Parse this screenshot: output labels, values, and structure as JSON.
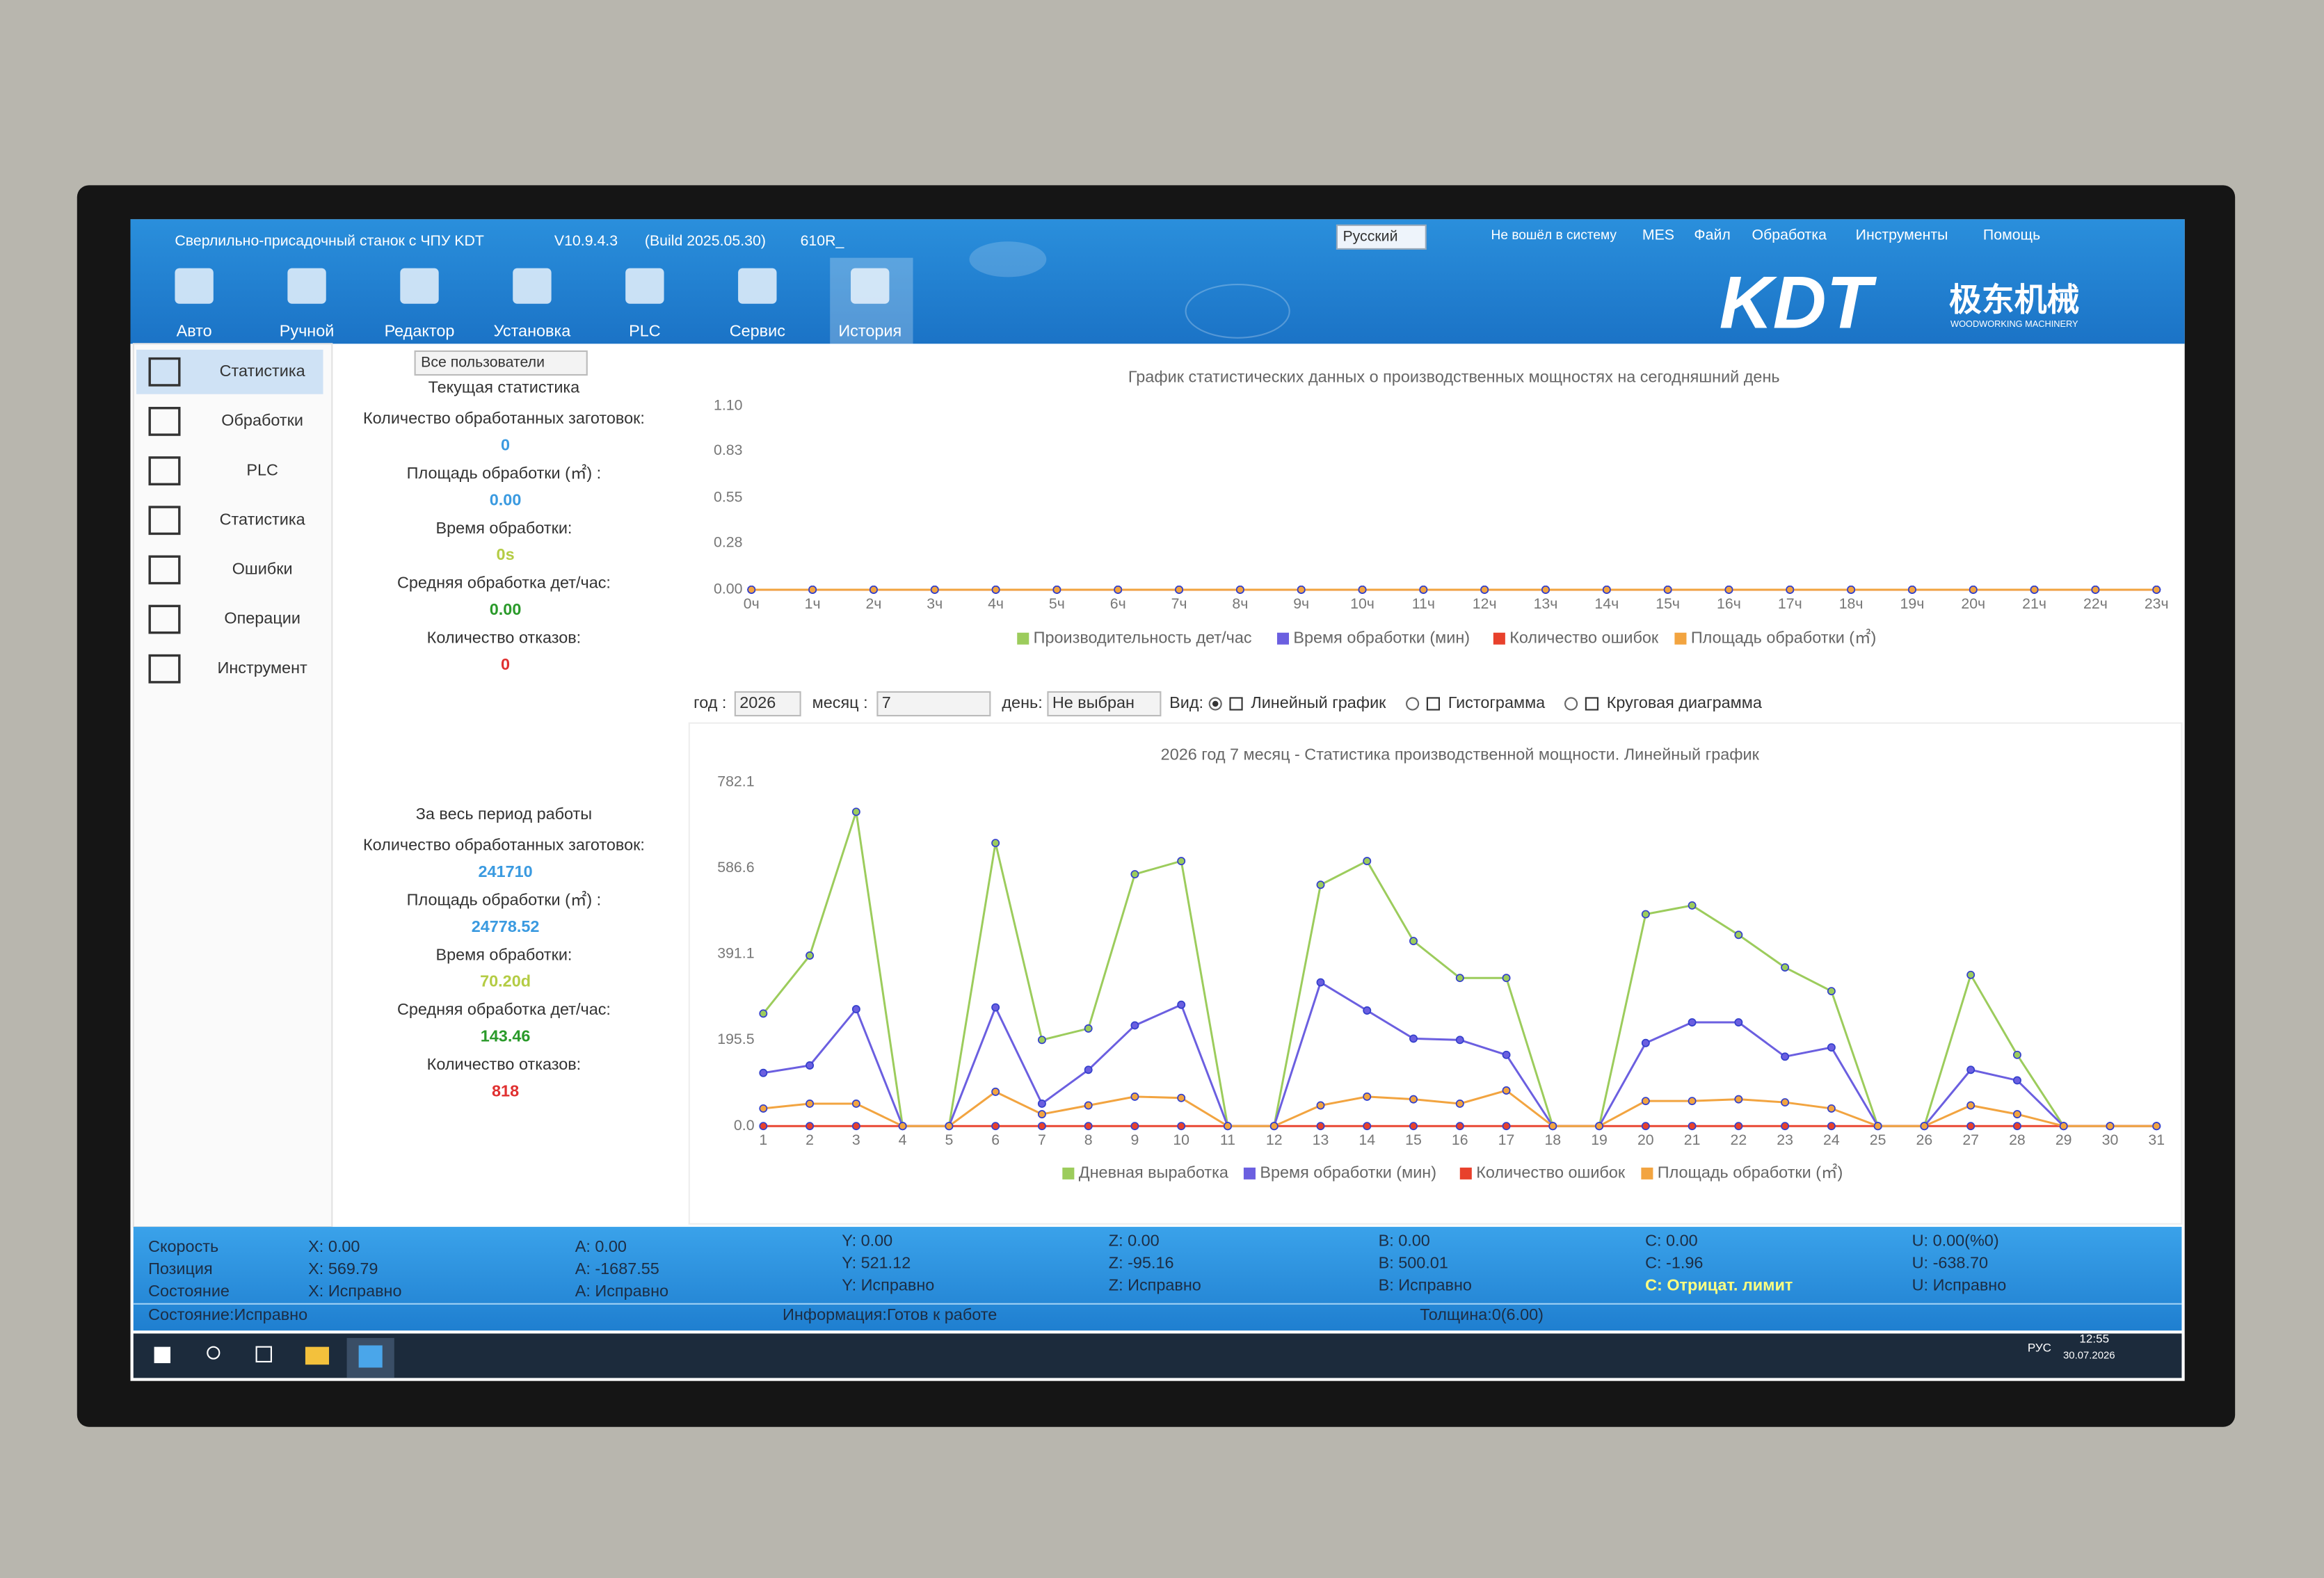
{
  "window": {
    "title": "Сверлильно-присадочный станок с ЧПУ KDT",
    "version": "V10.9.4.3",
    "build": "(Build 2025.05.30)",
    "model": "610R_",
    "language": "Русский",
    "login": "Не вошёл в систему",
    "menu": [
      "MES",
      "Файл",
      "Обработка",
      "Инструменты",
      "Помощь"
    ],
    "logo": "KDT",
    "logo_cn": "极东机械",
    "logo_sub": "WOODWORKING MACHINERY"
  },
  "toolbar": [
    "Авто",
    "Ручной",
    "Редактор",
    "Установка",
    "PLC",
    "Сервис",
    "История"
  ],
  "sidebar": [
    "Статистика",
    "Обработки",
    "PLC",
    "Статистика",
    "Ошибки",
    "Операции",
    "Инструмент"
  ],
  "stats": {
    "user_filter": "Все пользователи",
    "current": {
      "heading": "Текущая статистика",
      "items": [
        {
          "label": "Количество обработанных заготовок:",
          "value": "0"
        },
        {
          "label": "Площадь обработки (㎡) :",
          "value": "0.00"
        },
        {
          "label": "Время обработки:",
          "value": "0s"
        },
        {
          "label": "Средняя обработка дет/час:",
          "value": "0.00"
        },
        {
          "label": "Количество отказов:",
          "value": "0"
        }
      ]
    },
    "total": {
      "heading": "За весь период работы",
      "items": [
        {
          "label": "Количество обработанных заготовок:",
          "value": "241710"
        },
        {
          "label": "Площадь обработки (㎡) :",
          "value": "24778.52"
        },
        {
          "label": "Время обработки:",
          "value": "70.20d"
        },
        {
          "label": "Средняя обработка дет/час:",
          "value": "143.46"
        },
        {
          "label": "Количество отказов:",
          "value": "818"
        }
      ]
    }
  },
  "filters": {
    "year_label": "год :",
    "year": "2026",
    "month_label": "месяц :",
    "month": "7",
    "day_label": "день:",
    "day": "Не выбран",
    "view_label": "Вид:",
    "options": [
      "Линейный график",
      "Гистограмма",
      "Круговая диаграмма"
    ]
  },
  "chart_data": [
    {
      "type": "line",
      "title": "График статистических данных о производственных мощностях на сегодняшний день",
      "categories": [
        "0ч",
        "1ч",
        "2ч",
        "3ч",
        "4ч",
        "5ч",
        "6ч",
        "7ч",
        "8ч",
        "9ч",
        "10ч",
        "11ч",
        "12ч",
        "13ч",
        "14ч",
        "15ч",
        "16ч",
        "17ч",
        "18ч",
        "19ч",
        "20ч",
        "21ч",
        "22ч",
        "23ч"
      ],
      "series": [
        {
          "name": "Производительность дет/час",
          "color": "#9ccc5c",
          "values": [
            0,
            0,
            0,
            0,
            0,
            0,
            0,
            0,
            0,
            0,
            0,
            0,
            0,
            0,
            0,
            0,
            0,
            0,
            0,
            0,
            0,
            0,
            0,
            0
          ]
        },
        {
          "name": "Время обработки (мин)",
          "color": "#6b5fe0",
          "values": [
            0,
            0,
            0,
            0,
            0,
            0,
            0,
            0,
            0,
            0,
            0,
            0,
            0,
            0,
            0,
            0,
            0,
            0,
            0,
            0,
            0,
            0,
            0,
            0
          ]
        },
        {
          "name": "Количество ошибок",
          "color": "#e8412c",
          "values": [
            0,
            0,
            0,
            0,
            0,
            0,
            0,
            0,
            0,
            0,
            0,
            0,
            0,
            0,
            0,
            0,
            0,
            0,
            0,
            0,
            0,
            0,
            0,
            0
          ]
        },
        {
          "name": "Площадь обработки (㎡)",
          "color": "#f2a440",
          "values": [
            0,
            0,
            0,
            0,
            0,
            0,
            0,
            0,
            0,
            0,
            0,
            0,
            0,
            0,
            0,
            0,
            0,
            0,
            0,
            0,
            0,
            0,
            0,
            0
          ]
        }
      ],
      "ylim": [
        0,
        1.1
      ],
      "yticks": [
        {
          "value": 0,
          "label": "0.00"
        },
        {
          "value": 0.28,
          "label": "0.28"
        },
        {
          "value": 0.55,
          "label": "0.55"
        },
        {
          "value": 0.83,
          "label": "0.83"
        },
        {
          "value": 1.1,
          "label": "1.10"
        }
      ],
      "grid": false,
      "legend": "bottom"
    },
    {
      "type": "line",
      "title": "2026 год 7 месяц - Статистика производственной мощности. Линейный график",
      "categories": [
        "1",
        "2",
        "3",
        "4",
        "5",
        "6",
        "7",
        "8",
        "9",
        "10",
        "11",
        "12",
        "13",
        "14",
        "15",
        "16",
        "17",
        "18",
        "19",
        "20",
        "21",
        "22",
        "23",
        "24",
        "25",
        "26",
        "27",
        "28",
        "29",
        "30",
        "31"
      ],
      "series": [
        {
          "name": "Дневная выработка",
          "color": "#9ccc5c",
          "values": [
            256,
            388,
            715,
            0,
            0,
            644,
            196,
            222,
            573,
            603,
            0,
            0,
            549,
            603,
            421,
            337,
            337,
            0,
            0,
            482,
            502,
            435,
            361,
            307,
            0,
            0,
            344,
            162,
            0,
            0,
            0
          ]
        },
        {
          "name": "Время обработки (мин)",
          "color": "#6b5fe0",
          "values": [
            121,
            138,
            266,
            0,
            0,
            270,
            51,
            128,
            229,
            276,
            0,
            0,
            327,
            263,
            199,
            196,
            162,
            0,
            0,
            189,
            236,
            236,
            158,
            179,
            0,
            0,
            128,
            104,
            0,
            0,
            0
          ]
        },
        {
          "name": "Количество ошибок",
          "color": "#e8412c",
          "values": [
            0,
            0,
            0,
            0,
            0,
            0,
            0,
            0,
            0,
            0,
            0,
            0,
            0,
            0,
            0,
            0,
            0,
            0,
            0,
            0,
            0,
            0,
            0,
            0,
            0,
            0,
            0,
            0,
            0,
            0,
            0
          ]
        },
        {
          "name": "Площадь обработки (㎡)",
          "color": "#f2a440",
          "values": [
            40,
            51,
            51,
            0,
            0,
            78,
            27,
            47,
            67,
            64,
            0,
            0,
            47,
            67,
            61,
            51,
            81,
            0,
            0,
            57,
            57,
            61,
            54,
            40,
            0,
            0,
            47,
            27,
            0,
            0,
            0
          ]
        }
      ],
      "ylim": [
        0,
        782.1
      ],
      "yticks": [
        {
          "value": 0,
          "label": "0.0"
        },
        195.5,
        391.1,
        586.6,
        782.1
      ],
      "grid": false,
      "legend": "bottom"
    }
  ],
  "status": {
    "labels": [
      "Скорость",
      "Позиция",
      "Состояние"
    ],
    "columns": [
      [
        "X: 0.00",
        "X: 569.79",
        "X: Исправно"
      ],
      [
        "A: 0.00",
        "A: -1687.55",
        "A: Исправно"
      ],
      [
        "Y: 0.00",
        "Y: 521.12",
        "Y: Исправно"
      ],
      [
        "Z: 0.00",
        "Z: -95.16",
        "Z: Исправно"
      ],
      [
        "B: 0.00",
        "B: 500.01",
        "B: Исправно"
      ],
      [
        "C: 0.00",
        "C: -1.96",
        "C: Отрицат. лимит"
      ],
      [
        "U: 0.00(%0)",
        "U: -638.70",
        "U: Исправно"
      ]
    ],
    "footer": [
      "Состояние:Исправно",
      "Информация:Готов к работе",
      "Толщина:0(6.00)"
    ]
  },
  "taskbar": {
    "lang": "РУС",
    "time": "12:55",
    "date": "30.07.2026"
  }
}
